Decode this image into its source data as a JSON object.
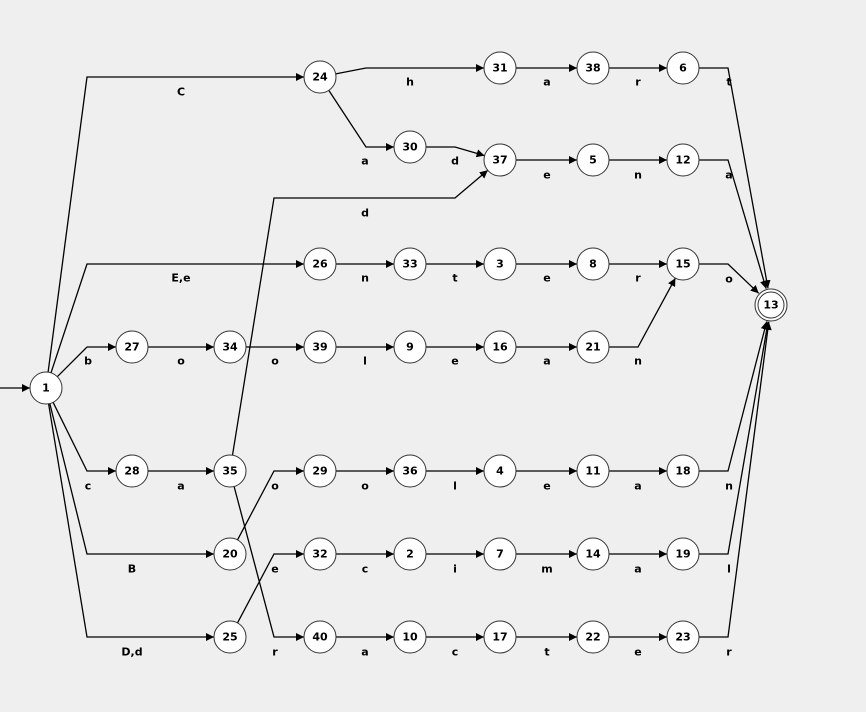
{
  "colors": {
    "background": "#efefef",
    "node_fill": "#ffffff",
    "node_stroke": "#333333",
    "edge": "#000000"
  },
  "diagram": {
    "start_state": "1",
    "accept_states": [
      "13"
    ],
    "states": [
      "1",
      "24",
      "31",
      "38",
      "6",
      "30",
      "37",
      "5",
      "12",
      "26",
      "33",
      "3",
      "8",
      "15",
      "13",
      "27",
      "34",
      "39",
      "9",
      "16",
      "21",
      "28",
      "35",
      "29",
      "36",
      "4",
      "11",
      "18",
      "20",
      "32",
      "2",
      "7",
      "14",
      "19",
      "25",
      "40",
      "10",
      "17",
      "22",
      "23"
    ],
    "transitions": [
      {
        "from": "1",
        "to": "24",
        "label": "C"
      },
      {
        "from": "24",
        "to": "31",
        "label": "h"
      },
      {
        "from": "31",
        "to": "38",
        "label": "a"
      },
      {
        "from": "38",
        "to": "6",
        "label": "r"
      },
      {
        "from": "6",
        "to": "13",
        "label": "t"
      },
      {
        "from": "24",
        "to": "30",
        "label": "a"
      },
      {
        "from": "30",
        "to": "37",
        "label": "d"
      },
      {
        "from": "35",
        "to": "37",
        "label": "d"
      },
      {
        "from": "37",
        "to": "5",
        "label": "e"
      },
      {
        "from": "5",
        "to": "12",
        "label": "n"
      },
      {
        "from": "12",
        "to": "13",
        "label": "a"
      },
      {
        "from": "1",
        "to": "26",
        "label": "E,e"
      },
      {
        "from": "26",
        "to": "33",
        "label": "n"
      },
      {
        "from": "33",
        "to": "3",
        "label": "t"
      },
      {
        "from": "3",
        "to": "8",
        "label": "e"
      },
      {
        "from": "8",
        "to": "15",
        "label": "r"
      },
      {
        "from": "15",
        "to": "13",
        "label": "o"
      },
      {
        "from": "1",
        "to": "27",
        "label": "b"
      },
      {
        "from": "27",
        "to": "34",
        "label": "o"
      },
      {
        "from": "34",
        "to": "39",
        "label": "o"
      },
      {
        "from": "39",
        "to": "9",
        "label": "l"
      },
      {
        "from": "9",
        "to": "16",
        "label": "e"
      },
      {
        "from": "16",
        "to": "21",
        "label": "a"
      },
      {
        "from": "21",
        "to": "15",
        "label": "n"
      },
      {
        "from": "1",
        "to": "28",
        "label": "c"
      },
      {
        "from": "28",
        "to": "35",
        "label": "a"
      },
      {
        "from": "20",
        "to": "29",
        "label": "o"
      },
      {
        "from": "29",
        "to": "36",
        "label": "o"
      },
      {
        "from": "36",
        "to": "4",
        "label": "l"
      },
      {
        "from": "4",
        "to": "11",
        "label": "e"
      },
      {
        "from": "11",
        "to": "18",
        "label": "a"
      },
      {
        "from": "18",
        "to": "13",
        "label": "n"
      },
      {
        "from": "1",
        "to": "20",
        "label": "B"
      },
      {
        "from": "25",
        "to": "32",
        "label": "e"
      },
      {
        "from": "32",
        "to": "2",
        "label": "c"
      },
      {
        "from": "2",
        "to": "7",
        "label": "i"
      },
      {
        "from": "7",
        "to": "14",
        "label": "m"
      },
      {
        "from": "14",
        "to": "19",
        "label": "a"
      },
      {
        "from": "19",
        "to": "13",
        "label": "l"
      },
      {
        "from": "1",
        "to": "25",
        "label": "D,d"
      },
      {
        "from": "35",
        "to": "40",
        "label": "r"
      },
      {
        "from": "40",
        "to": "10",
        "label": "a"
      },
      {
        "from": "10",
        "to": "17",
        "label": "c"
      },
      {
        "from": "17",
        "to": "22",
        "label": "t"
      },
      {
        "from": "22",
        "to": "23",
        "label": "e"
      },
      {
        "from": "23",
        "to": "13",
        "label": "r"
      }
    ]
  }
}
